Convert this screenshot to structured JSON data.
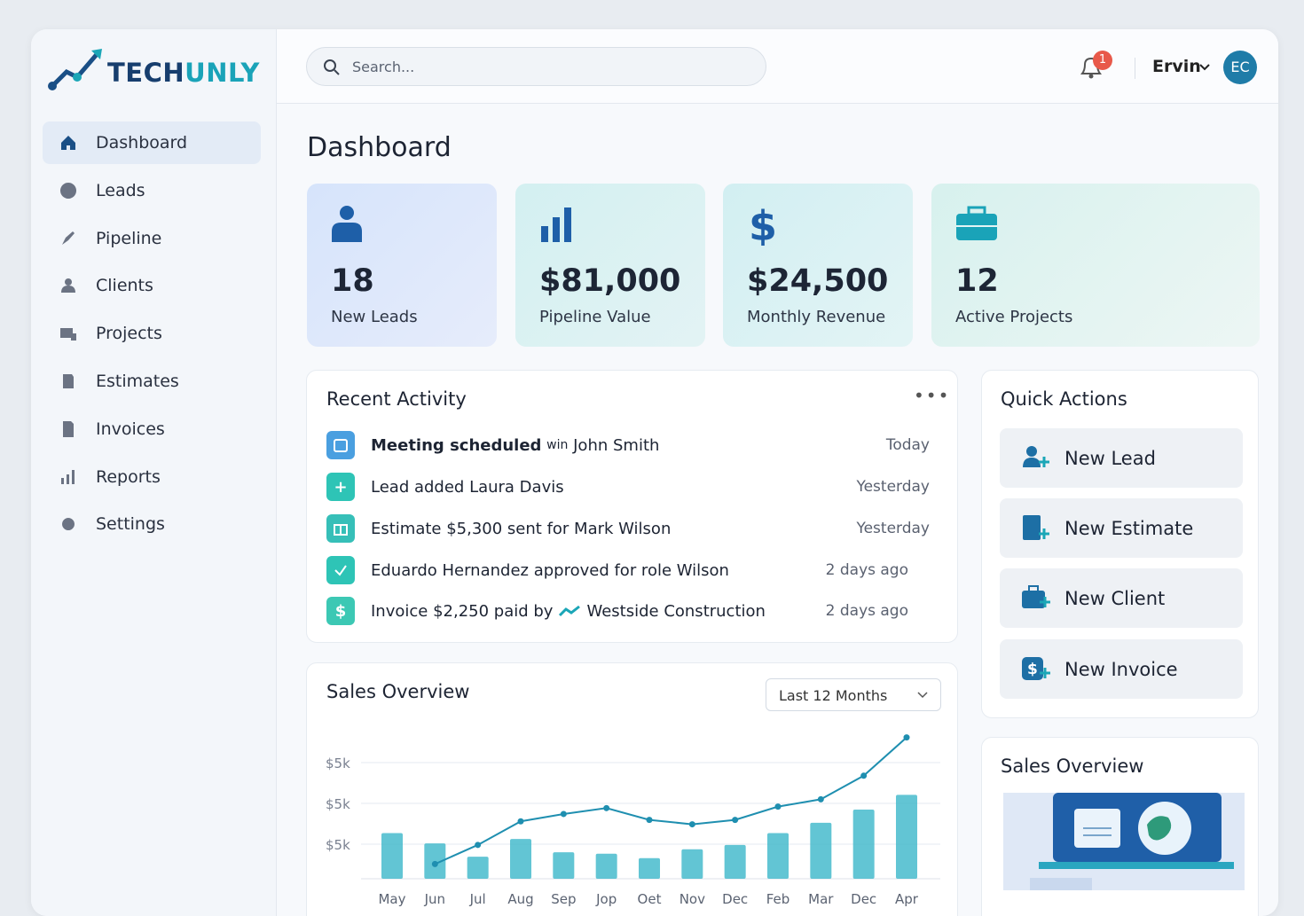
{
  "brand": {
    "part1": "TECH",
    "part2": "UNLY"
  },
  "header": {
    "search_placeholder": "Search...",
    "notification_count": "1",
    "user_name": "Ervin",
    "avatar": "EC"
  },
  "nav": [
    "Dashboard",
    "Leads",
    "Pipeline",
    "Clients",
    "Projects",
    "Estimates",
    "Invoices",
    "Reports",
    "Settings"
  ],
  "page_title": "Dashboard",
  "stats": [
    {
      "value": "18",
      "label": "New Leads"
    },
    {
      "value": "$81,000",
      "label": "Pipeline Value"
    },
    {
      "value": "$24,500",
      "label": "Monthly Revenue"
    },
    {
      "value": "12",
      "label": "Active Projects"
    }
  ],
  "recent_activity": {
    "title": "Recent Activity",
    "items": [
      {
        "bold": "Meeting scheduled",
        "small": "win",
        "text": "John Smith",
        "time": "Today"
      },
      {
        "text": "Lead added  Laura Davis",
        "time": "Yesterday"
      },
      {
        "text": "Estimate $5,300 sent for  Mark Wilson",
        "time": "Yesterday"
      },
      {
        "text": "Eduardo Hernandez approved for role Wilson",
        "time": "2 days ago"
      },
      {
        "text": "Invoice $2,250 paid by",
        "text2": "Westside Construction",
        "time": "2 days ago"
      }
    ]
  },
  "quick_actions": {
    "title": "Quick Actions",
    "items": [
      "New Lead",
      "New Estimate",
      "New Client",
      "New Invoice"
    ]
  },
  "sales_overview": {
    "title": "Sales Overview",
    "range_select": "Last 12 Months"
  },
  "sales_card": {
    "title": "Sales Overview"
  },
  "chart_data": {
    "type": "bar",
    "y_labels": [
      "$5k",
      "$5k",
      "$5k"
    ],
    "categories": [
      "May",
      "Jun",
      "Jul",
      "Aug",
      "Sep",
      "Jop",
      "Oet",
      "Nov",
      "Dec",
      "Feb",
      "Mar",
      "Dec",
      "Apr"
    ],
    "ylim": [
      0,
      100
    ],
    "series": [
      {
        "type": "bar",
        "color": "#3bb6c9",
        "values": [
          31,
          24,
          15,
          27,
          18,
          17,
          14,
          20,
          23,
          31,
          38,
          47,
          57
        ]
      },
      {
        "type": "line",
        "color": "#1f8fb0",
        "values": [
          null,
          10,
          23,
          39,
          44,
          48,
          40,
          37,
          40,
          49,
          54,
          70,
          96
        ]
      }
    ]
  }
}
